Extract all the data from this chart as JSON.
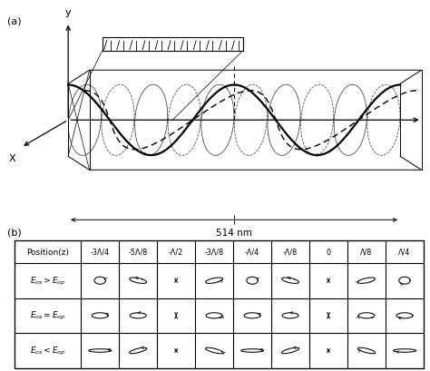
{
  "bg_color": "#ffffff",
  "positions": [
    "-3Λ/4",
    "-5Λ/8",
    "-Λ/2",
    "-3Λ/8",
    "-Λ/4",
    "-Λ/8",
    "0",
    "Λ/8",
    "Λ/4"
  ],
  "row_labels_latex": [
    "$E_{os}>E_{op}$",
    "$E_{os}=E_{op}$",
    "$E_{os}<E_{op}$"
  ],
  "wavelength_label": "514 nm",
  "panel_a_label": "(a)",
  "panel_b_label": "(b)"
}
